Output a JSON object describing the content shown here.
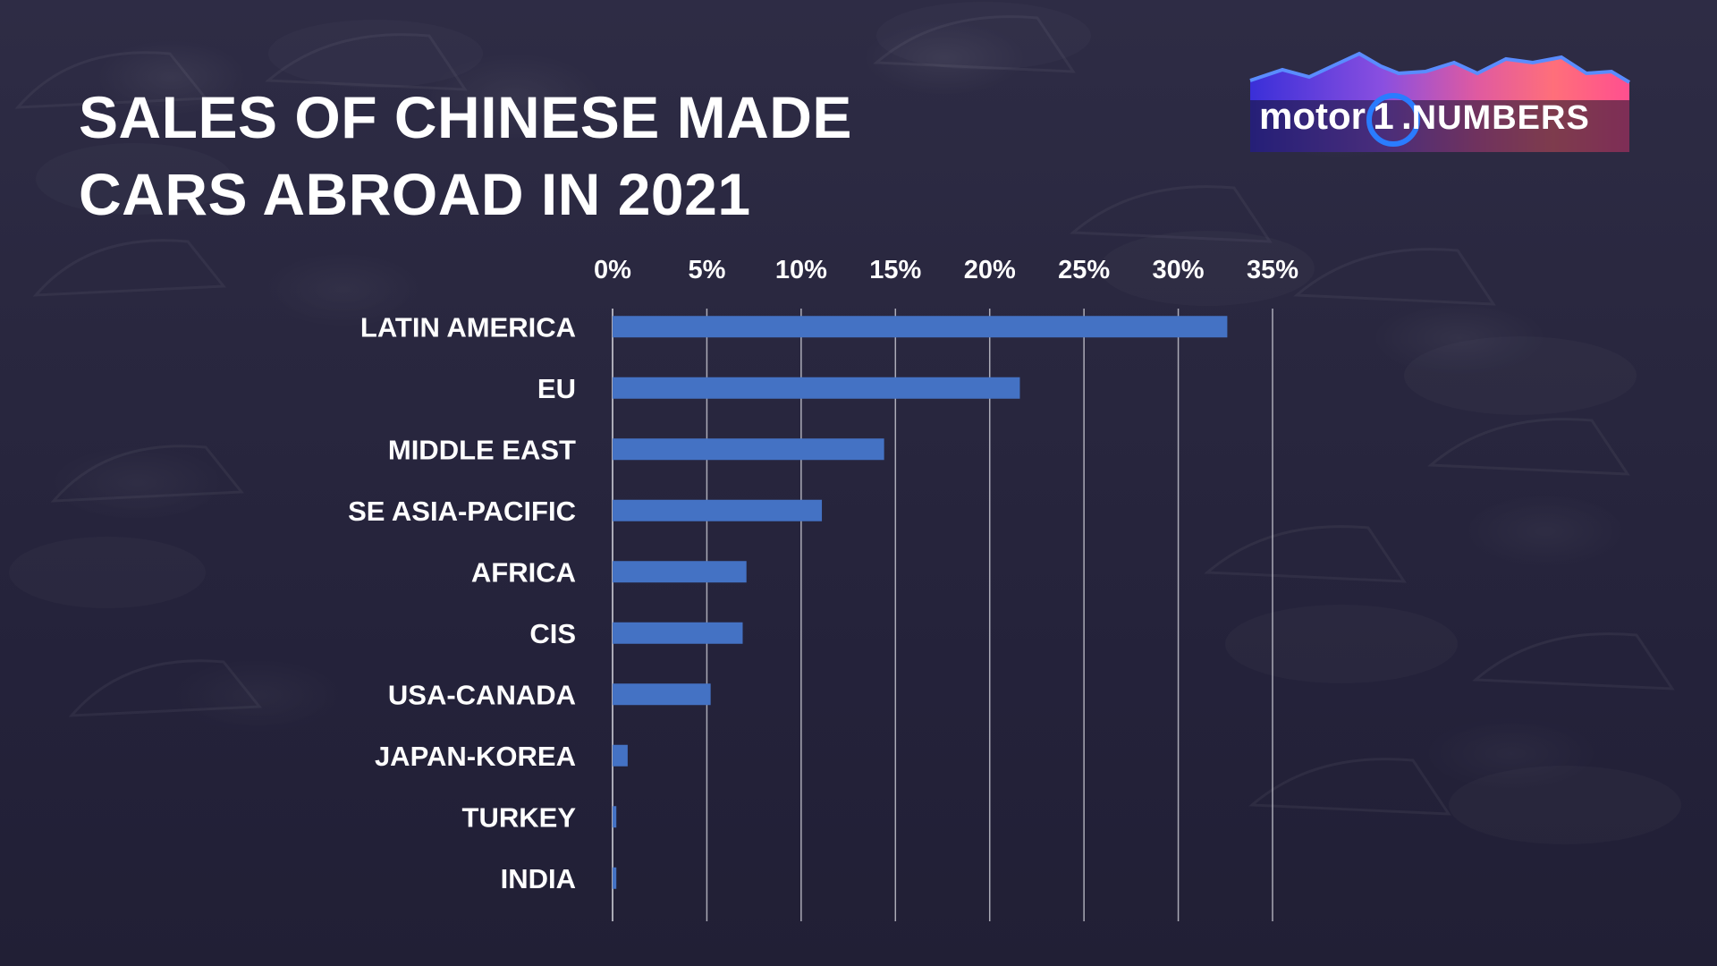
{
  "title_lines": [
    "SALES OF CHINESE MADE",
    "CARS ABROAD IN 2021"
  ],
  "logo": {
    "brand_a": "motor",
    "brand_digit": "1",
    "brand_b": "NUMBERS"
  },
  "colors": {
    "bar": "#4472c4",
    "text": "#ffffff",
    "grid": "#d8d8e0"
  },
  "chart_data": {
    "type": "bar",
    "orientation": "horizontal",
    "title": "SALES OF CHINESE MADE CARS ABROAD IN 2021",
    "categories": [
      "LATIN AMERICA",
      "EU",
      "MIDDLE EAST",
      "SE ASIA-PACIFIC",
      "AFRICA",
      "CIS",
      "USA-CANADA",
      "JAPAN-KOREA",
      "TURKEY",
      "INDIA"
    ],
    "values": [
      32.6,
      21.6,
      14.4,
      11.1,
      7.1,
      6.9,
      5.2,
      0.8,
      0.2,
      0.2
    ],
    "xlim": [
      0,
      35
    ],
    "xticks": [
      "0%",
      "5%",
      "10%",
      "15%",
      "20%",
      "25%",
      "30%",
      "35%"
    ],
    "axis_position": "top",
    "grid": true,
    "legend": "none"
  }
}
